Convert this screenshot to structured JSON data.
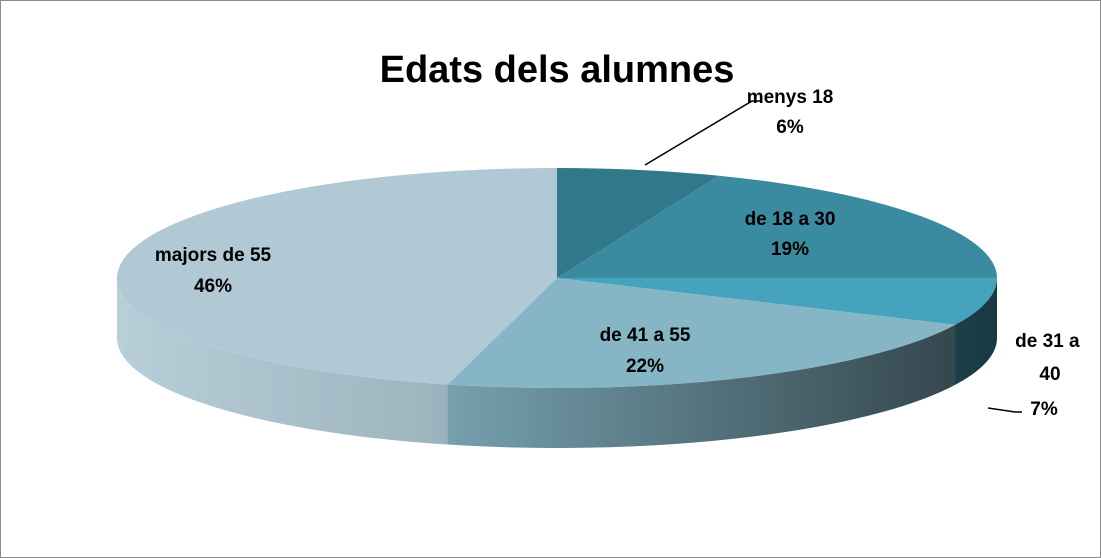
{
  "chart_data": {
    "type": "pie",
    "title": "Edats dels alumnes",
    "categories": [
      "menys 18",
      "de 18 a 30",
      "de 31 a 40",
      "de 41 a 55",
      "majors de 55"
    ],
    "values": [
      6,
      19,
      7,
      22,
      46
    ],
    "value_labels": [
      "6%",
      "19%",
      "7%",
      "22%",
      "46%"
    ],
    "colors": [
      "#31788a",
      "#3a8ba0",
      "#45a3bd",
      "#86b6c6",
      "#b0c9d5"
    ]
  }
}
